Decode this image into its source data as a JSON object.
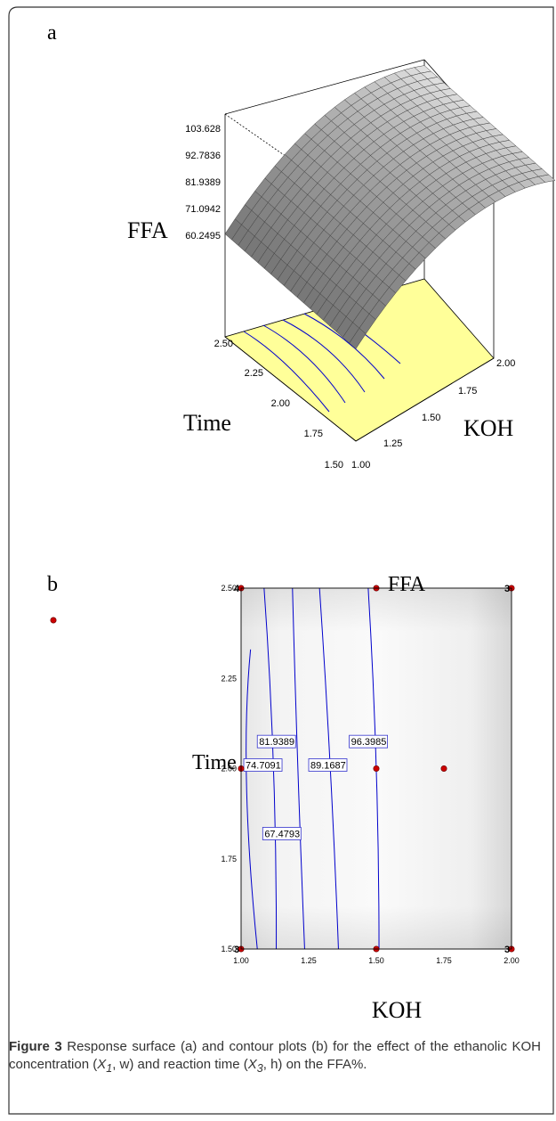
{
  "colors": {
    "surface_face": "#9a9a9a",
    "surface_line": "#404040",
    "floor": "#ffff99",
    "contour": "#0000cc",
    "label_border": "#3333cc",
    "design_point": "#cc0000",
    "frame": "#333333"
  },
  "panel_a": {
    "letter": "a",
    "z_axis_label": "FFA",
    "x_axis_label": "KOH",
    "y_axis_label": "Time",
    "z_ticks": [
      "103.628",
      "92.7836",
      "81.9389",
      "71.0942",
      "60.2495"
    ],
    "x_ticks": [
      "1.00",
      "1.25",
      "1.50",
      "1.75",
      "2.00"
    ],
    "y_ticks": [
      "1.50",
      "1.75",
      "2.00",
      "2.25",
      "2.50"
    ]
  },
  "panel_b": {
    "letter": "b",
    "title": "FFA",
    "x_axis_label": "KOH",
    "y_axis_label": "Time",
    "x_ticks": [
      "1.00",
      "1.25",
      "1.50",
      "1.75",
      "2.00"
    ],
    "y_ticks": [
      "1.50",
      "1.75",
      "2.00",
      "2.25",
      "2.50"
    ],
    "contour_labels": [
      "67.4793",
      "74.7091",
      "81.9389",
      "89.1687",
      "96.3985"
    ],
    "replicate_labels": [
      "4",
      "3",
      "3",
      "3"
    ]
  },
  "chart_data": [
    {
      "type": "surface",
      "x_label": "KOH",
      "y_label": "Time",
      "z_label": "FFA",
      "x_range": [
        1.0,
        2.0
      ],
      "y_range": [
        1.5,
        2.5
      ],
      "z_range": [
        60.2495,
        103.628
      ],
      "z_tick_values": [
        60.2495,
        71.0942,
        81.9389,
        92.7836,
        103.628
      ],
      "x_tick_values": [
        1.0,
        1.25,
        1.5,
        1.75,
        2.0
      ],
      "y_tick_values": [
        1.5,
        1.75,
        2.0,
        2.25,
        2.5
      ]
    },
    {
      "type": "contour",
      "title": "FFA",
      "x_label": "KOH",
      "y_label": "Time",
      "x_range": [
        1.0,
        2.0
      ],
      "y_range": [
        1.5,
        2.5
      ],
      "contour_levels": [
        67.4793,
        74.7091,
        81.9389,
        89.1687,
        96.3985
      ],
      "design_points": [
        {
          "x": 1.0,
          "y": 2.5,
          "replicates": 4
        },
        {
          "x": 1.5,
          "y": 2.5
        },
        {
          "x": 2.0,
          "y": 2.5,
          "replicates": 3
        },
        {
          "x": 1.0,
          "y": 2.0
        },
        {
          "x": 1.5,
          "y": 2.0
        },
        {
          "x": 1.75,
          "y": 2.0
        },
        {
          "x": 1.0,
          "y": 1.5,
          "replicates": 3
        },
        {
          "x": 1.5,
          "y": 1.5
        },
        {
          "x": 2.0,
          "y": 1.5,
          "replicates": 3
        }
      ]
    }
  ],
  "caption": {
    "figure_label": "Figure 3",
    "text_1": " Response surface (a) and contour plots (b) for the effect of the ethanolic KOH concentration (",
    "x1": "X",
    "x1_sub": "1",
    "text_2": ", w) and reaction time (",
    "x3": "X",
    "x3_sub": "3",
    "text_3": ", h) on the FFA%."
  }
}
